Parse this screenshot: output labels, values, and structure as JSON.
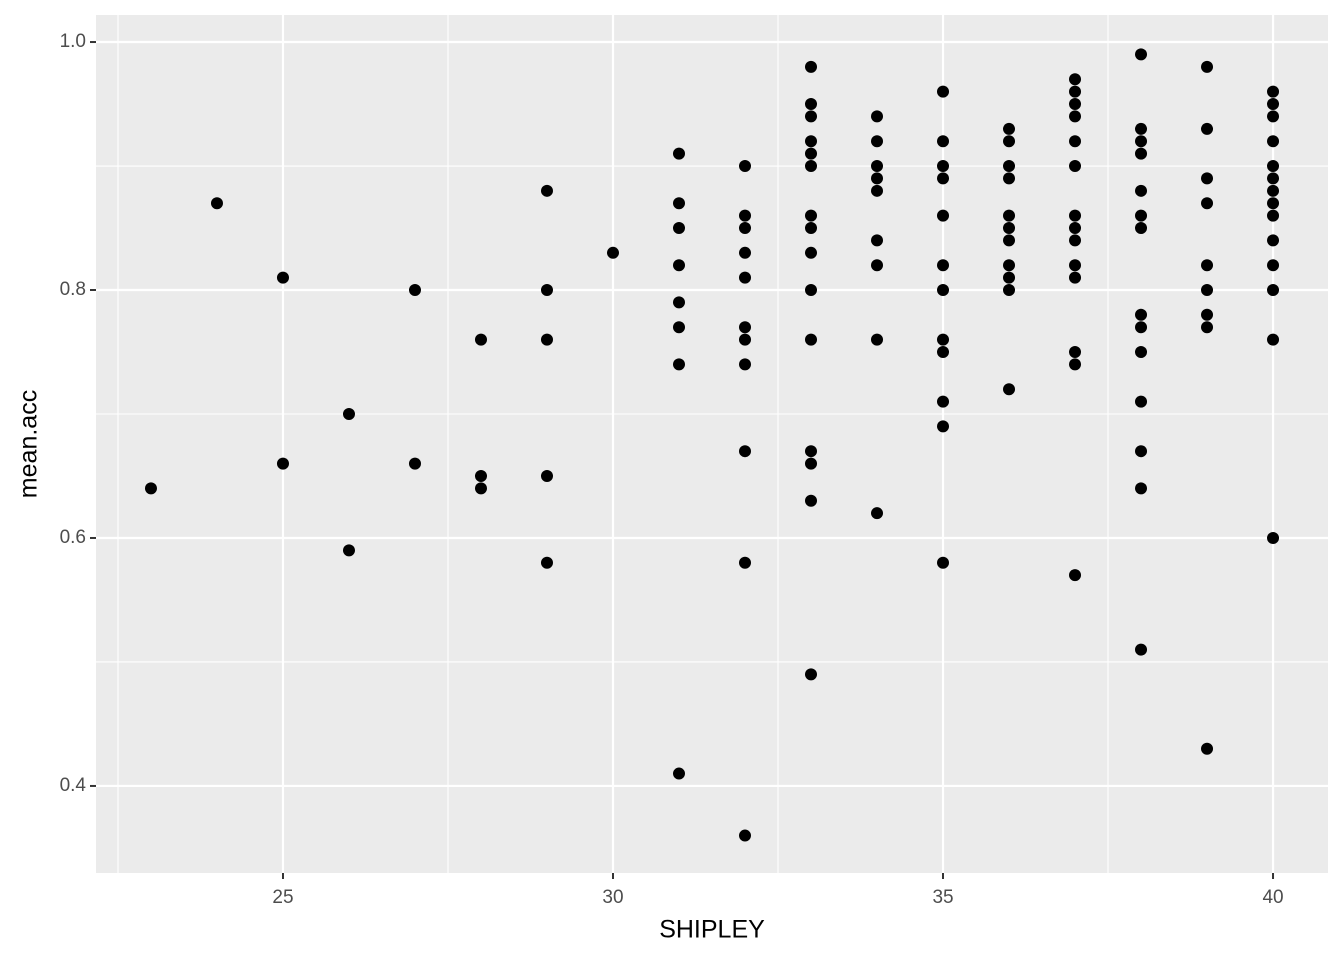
{
  "chart_data": {
    "type": "scatter",
    "x_label": "SHIPLEY",
    "y_label": "mean.acc",
    "color": "#000000",
    "xlim": [
      22.167,
      40.833
    ],
    "ylim": [
      0.3298,
      1.0218
    ],
    "xticks": [
      25,
      30,
      35,
      40
    ],
    "yticks": [
      0.4,
      0.6,
      0.8,
      {
        "value": 1,
        "label": "1.0"
      }
    ],
    "x_minor_ticks": [
      22.5,
      27.5,
      32.5,
      37.5
    ],
    "y_minor_ticks": [
      0.5,
      0.7,
      0.9
    ],
    "grid": true,
    "x": [
      23,
      24,
      25,
      25,
      26,
      26,
      27,
      27,
      28,
      28,
      28,
      29,
      29,
      29,
      29,
      29,
      30,
      31,
      31,
      31,
      31,
      31,
      31,
      31,
      31,
      32,
      32,
      32,
      32,
      32,
      32,
      32,
      32,
      32,
      32,
      32,
      33,
      33,
      33,
      33,
      33,
      33,
      33,
      33,
      33,
      33,
      33,
      33,
      33,
      33,
      33,
      34,
      34,
      34,
      34,
      34,
      34,
      34,
      34,
      34,
      35,
      35,
      35,
      35,
      35,
      35,
      35,
      35,
      35,
      35,
      35,
      35,
      36,
      36,
      36,
      36,
      36,
      36,
      36,
      36,
      36,
      36,
      36,
      37,
      37,
      37,
      37,
      37,
      37,
      37,
      37,
      37,
      37,
      37,
      37,
      37,
      37,
      38,
      38,
      38,
      38,
      38,
      38,
      38,
      38,
      38,
      38,
      38,
      38,
      38,
      38,
      39,
      39,
      39,
      39,
      39,
      39,
      39,
      39,
      39,
      40,
      40,
      40,
      40,
      40,
      40,
      40,
      40,
      40,
      40,
      40,
      40,
      40,
      40
    ],
    "values": [
      0.64,
      0.87,
      0.81,
      0.66,
      0.7,
      0.59,
      0.8,
      0.66,
      0.76,
      0.65,
      0.64,
      0.88,
      0.8,
      0.76,
      0.65,
      0.58,
      0.83,
      0.91,
      0.87,
      0.85,
      0.82,
      0.79,
      0.77,
      0.74,
      0.41,
      0.9,
      0.86,
      0.85,
      0.83,
      0.81,
      0.77,
      0.76,
      0.74,
      0.67,
      0.58,
      0.36,
      0.98,
      0.95,
      0.94,
      0.92,
      0.91,
      0.9,
      0.86,
      0.85,
      0.83,
      0.8,
      0.76,
      0.67,
      0.66,
      0.63,
      0.49,
      0.94,
      0.92,
      0.9,
      0.89,
      0.88,
      0.84,
      0.82,
      0.76,
      0.62,
      0.96,
      0.92,
      0.9,
      0.89,
      0.86,
      0.82,
      0.8,
      0.76,
      0.75,
      0.71,
      0.69,
      0.58,
      0.93,
      0.92,
      0.9,
      0.89,
      0.86,
      0.85,
      0.84,
      0.82,
      0.81,
      0.8,
      0.72,
      0.97,
      0.96,
      0.95,
      0.94,
      0.92,
      0.9,
      0.86,
      0.85,
      0.84,
      0.82,
      0.81,
      0.75,
      0.74,
      0.57,
      0.99,
      0.93,
      0.92,
      0.91,
      0.88,
      0.86,
      0.85,
      0.78,
      0.77,
      0.75,
      0.71,
      0.67,
      0.64,
      0.51,
      0.98,
      0.93,
      0.89,
      0.87,
      0.82,
      0.8,
      0.78,
      0.77,
      0.43,
      0.96,
      0.95,
      0.94,
      0.92,
      0.9,
      0.89,
      0.88,
      0.87,
      0.86,
      0.84,
      0.82,
      0.8,
      0.76,
      0.6
    ]
  }
}
